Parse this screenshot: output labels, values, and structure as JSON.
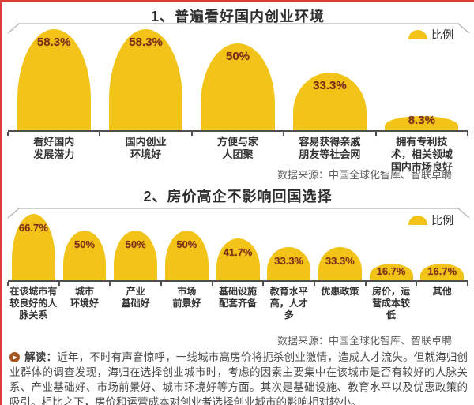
{
  "colors": {
    "bar_fill": "#F2C318",
    "value_label": "#7A2E18",
    "accent_border": "#DC3C3C",
    "axis": "#4F4F4F",
    "frame": "#B3B3B3",
    "title_text": "#2F2F2F",
    "body_text": "#4B4B4B",
    "reading_icon": "#A4551E"
  },
  "chart_data": [
    {
      "type": "bar",
      "title": "1、普遍看好国内创业环境",
      "legend": "比例",
      "unit": "%",
      "categories": [
        "看好国内\n发展潜力",
        "国内创业\n环境好",
        "方便与家\n人团聚",
        "容易获得亲戚\n朋友等社会网",
        "拥有专利技\n术，相关领域\n国内市场良好"
      ],
      "values": [
        58.3,
        58.3,
        50,
        33.3,
        8.3
      ],
      "ylim": [
        0,
        60
      ],
      "grid": false,
      "legend_position": "top-right",
      "source": "数据来源：中国全球化智库、智联卓聘"
    },
    {
      "type": "bar",
      "title": "2、房价高企不影响回国选择",
      "legend": "比例",
      "unit": "%",
      "categories": [
        "在该城市有\n较良好的人\n脉关系",
        "城市\n环境好",
        "产业\n基础好",
        "市场\n前景好",
        "基础设施\n配套齐备",
        "教育水平\n高，人才\n多",
        "优惠政策",
        "房价，运\n营成本较\n低",
        "其他"
      ],
      "values": [
        66.7,
        50,
        50,
        50,
        41.7,
        33.3,
        33.3,
        16.7,
        16.7
      ],
      "ylim": [
        0,
        70
      ],
      "grid": false,
      "legend_position": "top-right",
      "source": "数据来源：中国全球化智库、智联卓聘"
    }
  ],
  "reading": {
    "label": "解读：",
    "text": "近年，不时有声音惊呼，一线城市高房价将扼杀创业激情，造成人才流失。但就海归创业群体的调查发现，海归在选择创业城市时，考虑的因素主要集中在该城市是否有较好的人脉关系、产业基础好、市场前景好、城市环境好等方面。其次是基础设施、教育水平以及优惠政策的吸引。相比之下，房价和运营成本对创业者选择创业城市的影响相对较小。"
  }
}
